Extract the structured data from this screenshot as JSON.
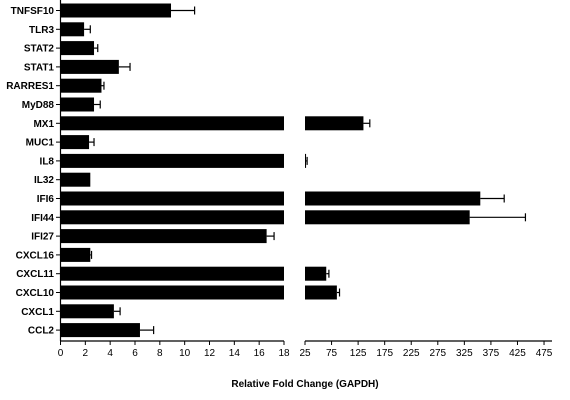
{
  "chart_data": {
    "type": "bar",
    "orientation": "horizontal",
    "axis_break": true,
    "xlabel": "Relative Fold Change (GAPDH)",
    "ylabel": "",
    "title": "",
    "categories": [
      "TNFSF10",
      "TLR3",
      "STAT2",
      "STAT1",
      "RARRES1",
      "MyD88",
      "MX1",
      "MUC1",
      "IL8",
      "IL32",
      "IFI6",
      "IFI44",
      "IFI27",
      "CXCL16",
      "CXCL11",
      "CXCL10",
      "CXCL1",
      "CCL2"
    ],
    "values": [
      8.9,
      1.9,
      2.7,
      4.7,
      3.3,
      2.7,
      135,
      2.3,
      27,
      2.4,
      355,
      335,
      16.6,
      2.4,
      65,
      85,
      4.3,
      6.4
    ],
    "errors": [
      1.9,
      0.5,
      0.3,
      0.9,
      0.2,
      0.5,
      12,
      0.4,
      2,
      0,
      45,
      105,
      0.6,
      0.1,
      5,
      5,
      0.5,
      1.1
    ],
    "segments": [
      {
        "xlim": [
          0,
          18
        ],
        "ticks": [
          "0",
          "2",
          "4",
          "6",
          "8",
          "10",
          "12",
          "14",
          "16",
          "18"
        ]
      },
      {
        "xlim": [
          25,
          490
        ],
        "ticks": [
          "25",
          "75",
          "125",
          "175",
          "225",
          "275",
          "325",
          "375",
          "425",
          "475"
        ]
      }
    ],
    "bar_color": "#000000",
    "grid": false,
    "legend": "none"
  }
}
